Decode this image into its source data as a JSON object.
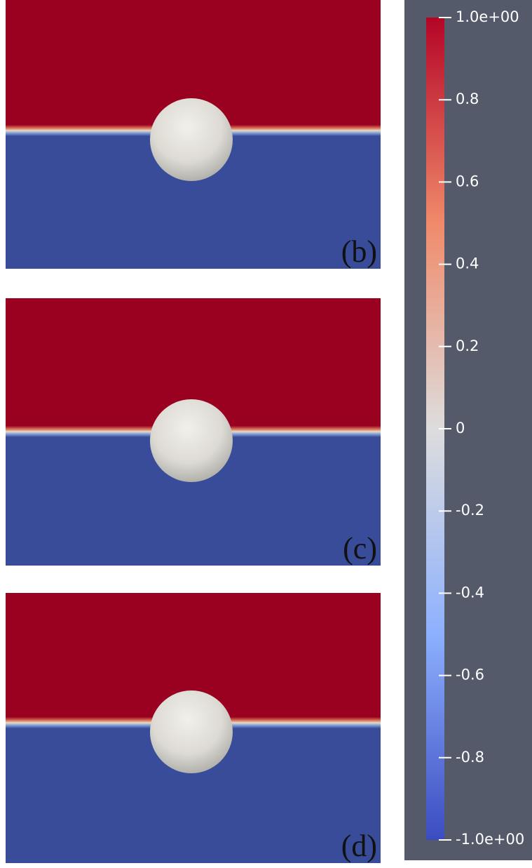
{
  "panels": [
    {
      "label": "(b)"
    },
    {
      "label": "(c)"
    },
    {
      "label": "(d)"
    }
  ],
  "colorbar": {
    "range": [
      -1,
      1
    ],
    "ticks": [
      {
        "value": 1,
        "label": "1.0e+00"
      },
      0.8,
      0.6,
      0.4,
      0.2,
      0,
      -0.2,
      -0.4,
      -0.6,
      -0.8,
      {
        "value": -1,
        "label": "-1.0e+00"
      }
    ]
  }
}
